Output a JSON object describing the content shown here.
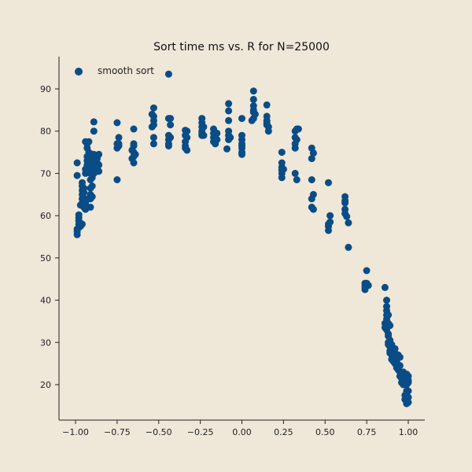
{
  "chart_data": {
    "type": "scatter",
    "title": "Sort time ms vs. R for N=25000",
    "xlabel": "",
    "ylabel": "",
    "xlim": [
      -1.1,
      1.1
    ],
    "ylim": [
      11.5,
      97
    ],
    "xticks": [
      -1.0,
      -0.75,
      -0.5,
      -0.25,
      0.0,
      0.25,
      0.5,
      0.75,
      1.0
    ],
    "xtick_labels": [
      "−1.00",
      "−0.75",
      "−0.50",
      "−0.25",
      "0.00",
      "0.25",
      "0.50",
      "0.75",
      "1.00"
    ],
    "yticks": [
      20,
      30,
      40,
      50,
      60,
      70,
      80,
      90
    ],
    "ytick_labels": [
      "20",
      "30",
      "40",
      "50",
      "60",
      "70",
      "80",
      "90"
    ],
    "grid": false,
    "legend_position": "top-left",
    "colors": {
      "background": "#efe7d8",
      "marker": "#0a4c86",
      "axis": "#222222"
    },
    "series": [
      {
        "name": "smooth sort",
        "points": [
          [
            -0.99,
            55.5
          ],
          [
            -0.99,
            56.2
          ],
          [
            -0.99,
            56.8
          ],
          [
            -0.98,
            57.2
          ],
          [
            -0.98,
            58.0
          ],
          [
            -0.98,
            58.8
          ],
          [
            -0.98,
            59.5
          ],
          [
            -0.98,
            60.2
          ],
          [
            -0.97,
            57.5
          ],
          [
            -0.96,
            58.0
          ],
          [
            -0.99,
            69.5
          ],
          [
            -0.99,
            72.5
          ],
          [
            -0.97,
            62.5
          ],
          [
            -0.96,
            63.0
          ],
          [
            -0.96,
            64.0
          ],
          [
            -0.96,
            65.0
          ],
          [
            -0.96,
            66.0
          ],
          [
            -0.96,
            67.0
          ],
          [
            -0.96,
            67.8
          ],
          [
            -0.95,
            62.0
          ],
          [
            -0.95,
            63.5
          ],
          [
            -0.95,
            65.5
          ],
          [
            -0.95,
            66.5
          ],
          [
            -0.94,
            64.0
          ],
          [
            -0.94,
            70.0
          ],
          [
            -0.94,
            71.0
          ],
          [
            -0.94,
            61.5
          ],
          [
            -0.94,
            63.0
          ],
          [
            -0.93,
            72.0
          ],
          [
            -0.93,
            73.0
          ],
          [
            -0.93,
            74.0
          ],
          [
            -0.93,
            76.0
          ],
          [
            -0.93,
            77.0
          ],
          [
            -0.92,
            77.5
          ],
          [
            -0.92,
            75.0
          ],
          [
            -0.92,
            73.5
          ],
          [
            -0.92,
            72.5
          ],
          [
            -0.92,
            70.5
          ],
          [
            -0.91,
            62.0
          ],
          [
            -0.91,
            64.0
          ],
          [
            -0.91,
            65.0
          ],
          [
            -0.91,
            66.5
          ],
          [
            -0.91,
            68.5
          ],
          [
            -0.91,
            70.0
          ],
          [
            -0.91,
            71.0
          ],
          [
            -0.91,
            72.0
          ],
          [
            -0.9,
            64.5
          ],
          [
            -0.9,
            67.0
          ],
          [
            -0.9,
            69.0
          ],
          [
            -0.9,
            71.5
          ],
          [
            -0.9,
            73.0
          ],
          [
            -0.9,
            74.5
          ],
          [
            -0.89,
            70.0
          ],
          [
            -0.89,
            72.5
          ],
          [
            -0.89,
            74.5
          ],
          [
            -0.89,
            80.0
          ],
          [
            -0.89,
            82.2
          ],
          [
            -0.88,
            71.0
          ],
          [
            -0.88,
            73.0
          ],
          [
            -0.87,
            70.5
          ],
          [
            -0.87,
            72.5
          ],
          [
            -0.87,
            73.5
          ],
          [
            -0.86,
            74.5
          ],
          [
            -0.86,
            72.0
          ],
          [
            -0.86,
            70.5
          ],
          [
            -0.94,
            77.5
          ],
          [
            -0.75,
            82.0
          ],
          [
            -0.75,
            68.5
          ],
          [
            -0.75,
            76.0
          ],
          [
            -0.75,
            77.0
          ],
          [
            -0.74,
            77.0
          ],
          [
            -0.74,
            76.5
          ],
          [
            -0.74,
            78.5
          ],
          [
            -0.65,
            80.5
          ],
          [
            -0.65,
            72.5
          ],
          [
            -0.65,
            74.0
          ],
          [
            -0.65,
            75.0
          ],
          [
            -0.65,
            76.5
          ],
          [
            -0.65,
            77.0
          ],
          [
            -0.66,
            73.5
          ],
          [
            -0.66,
            75.5
          ],
          [
            -0.64,
            74.5
          ],
          [
            -0.54,
            84.0
          ],
          [
            -0.53,
            85.5
          ],
          [
            -0.53,
            83.5
          ],
          [
            -0.53,
            82.5
          ],
          [
            -0.53,
            81.5
          ],
          [
            -0.53,
            78.5
          ],
          [
            -0.53,
            77.0
          ],
          [
            -0.54,
            81.0
          ],
          [
            -0.44,
            93.5
          ],
          [
            -0.44,
            83.0
          ],
          [
            -0.44,
            79.0
          ],
          [
            -0.44,
            78.0
          ],
          [
            -0.44,
            77.0
          ],
          [
            -0.44,
            76.5
          ],
          [
            -0.43,
            83.0
          ],
          [
            -0.43,
            81.5
          ],
          [
            -0.43,
            78.5
          ],
          [
            -0.34,
            80.2
          ],
          [
            -0.34,
            79.0
          ],
          [
            -0.34,
            77.5
          ],
          [
            -0.34,
            76.5
          ],
          [
            -0.34,
            76.0
          ],
          [
            -0.33,
            80.0
          ],
          [
            -0.33,
            78.5
          ],
          [
            -0.33,
            75.5
          ],
          [
            -0.24,
            83.0
          ],
          [
            -0.24,
            82.0
          ],
          [
            -0.24,
            81.0
          ],
          [
            -0.24,
            80.0
          ],
          [
            -0.24,
            79.5
          ],
          [
            -0.24,
            79.0
          ],
          [
            -0.23,
            81.0
          ],
          [
            -0.23,
            79.0
          ],
          [
            -0.17,
            80.5
          ],
          [
            -0.17,
            79.5
          ],
          [
            -0.17,
            78.5
          ],
          [
            -0.17,
            77.5
          ],
          [
            -0.16,
            77.0
          ],
          [
            -0.16,
            79.0
          ],
          [
            -0.15,
            79.5
          ],
          [
            -0.15,
            78.0
          ],
          [
            -0.08,
            86.5
          ],
          [
            -0.08,
            84.8
          ],
          [
            -0.08,
            82.5
          ],
          [
            -0.08,
            80.0
          ],
          [
            -0.08,
            79.0
          ],
          [
            -0.08,
            78.0
          ],
          [
            -0.09,
            75.8
          ],
          [
            -0.07,
            78.5
          ],
          [
            0.0,
            83.0
          ],
          [
            0.0,
            79.0
          ],
          [
            0.0,
            78.0
          ],
          [
            0.0,
            77.0
          ],
          [
            0.0,
            76.5
          ],
          [
            0.0,
            76.0
          ],
          [
            0.0,
            75.0
          ],
          [
            0.0,
            74.5
          ],
          [
            0.07,
            89.5
          ],
          [
            0.07,
            87.5
          ],
          [
            0.07,
            86.0
          ],
          [
            0.07,
            85.0
          ],
          [
            0.07,
            84.5
          ],
          [
            0.07,
            83.0
          ],
          [
            0.06,
            82.5
          ],
          [
            0.08,
            84.0
          ],
          [
            0.15,
            86.2
          ],
          [
            0.15,
            83.5
          ],
          [
            0.15,
            82.5
          ],
          [
            0.15,
            82.0
          ],
          [
            0.15,
            81.5
          ],
          [
            0.16,
            80.0
          ],
          [
            0.16,
            81.0
          ],
          [
            0.24,
            75.0
          ],
          [
            0.24,
            72.5
          ],
          [
            0.24,
            71.5
          ],
          [
            0.24,
            70.8
          ],
          [
            0.24,
            70.0
          ],
          [
            0.24,
            69.0
          ],
          [
            0.25,
            71.0
          ],
          [
            0.32,
            80.0
          ],
          [
            0.32,
            78.5
          ],
          [
            0.32,
            77.0
          ],
          [
            0.32,
            76.0
          ],
          [
            0.33,
            80.5
          ],
          [
            0.33,
            78.0
          ],
          [
            0.32,
            70.0
          ],
          [
            0.33,
            68.5
          ],
          [
            0.34,
            80.5
          ],
          [
            0.42,
            76.0
          ],
          [
            0.42,
            73.5
          ],
          [
            0.42,
            68.5
          ],
          [
            0.42,
            64.0
          ],
          [
            0.42,
            62.0
          ],
          [
            0.43,
            74.8
          ],
          [
            0.43,
            65.0
          ],
          [
            0.43,
            61.5
          ],
          [
            0.52,
            67.8
          ],
          [
            0.52,
            58.0
          ],
          [
            0.52,
            57.5
          ],
          [
            0.52,
            56.5
          ],
          [
            0.53,
            60.0
          ],
          [
            0.53,
            58.5
          ],
          [
            0.62,
            64.5
          ],
          [
            0.62,
            63.5
          ],
          [
            0.62,
            63.0
          ],
          [
            0.62,
            61.5
          ],
          [
            0.62,
            60.5
          ],
          [
            0.63,
            59.8
          ],
          [
            0.64,
            58.3
          ],
          [
            0.64,
            52.5
          ],
          [
            0.75,
            47.0
          ],
          [
            0.74,
            44.0
          ],
          [
            0.74,
            43.5
          ],
          [
            0.74,
            43.0
          ],
          [
            0.74,
            42.5
          ],
          [
            0.75,
            44.0
          ],
          [
            0.76,
            43.5
          ],
          [
            0.86,
            43.0
          ],
          [
            0.86,
            34.5
          ],
          [
            0.86,
            33.5
          ],
          [
            0.87,
            40.0
          ],
          [
            0.87,
            38.5
          ],
          [
            0.87,
            37.5
          ],
          [
            0.87,
            36.5
          ],
          [
            0.87,
            35.5
          ],
          [
            0.87,
            35.0
          ],
          [
            0.87,
            33.0
          ],
          [
            0.88,
            36.5
          ],
          [
            0.88,
            34.5
          ],
          [
            0.88,
            32.0
          ],
          [
            0.88,
            31.5
          ],
          [
            0.88,
            30.0
          ],
          [
            0.88,
            29.5
          ],
          [
            0.89,
            30.5
          ],
          [
            0.89,
            29.0
          ],
          [
            0.89,
            28.0
          ],
          [
            0.89,
            27.5
          ],
          [
            0.89,
            34.0
          ],
          [
            0.9,
            29.5
          ],
          [
            0.9,
            27.5
          ],
          [
            0.9,
            27.0
          ],
          [
            0.9,
            26.0
          ],
          [
            0.91,
            28.0
          ],
          [
            0.91,
            27.0
          ],
          [
            0.91,
            26.0
          ],
          [
            0.91,
            25.5
          ],
          [
            0.92,
            28.5
          ],
          [
            0.92,
            27.5
          ],
          [
            0.92,
            26.5
          ],
          [
            0.92,
            25.0
          ],
          [
            0.93,
            26.5
          ],
          [
            0.93,
            25.5
          ],
          [
            0.93,
            24.0
          ],
          [
            0.94,
            27.0
          ],
          [
            0.94,
            23.5
          ],
          [
            0.95,
            26.5
          ],
          [
            0.95,
            24.5
          ],
          [
            0.95,
            23.0
          ],
          [
            0.95,
            22.0
          ],
          [
            0.96,
            22.5
          ],
          [
            0.96,
            21.5
          ],
          [
            0.96,
            20.5
          ],
          [
            0.97,
            23.0
          ],
          [
            0.97,
            21.0
          ],
          [
            0.97,
            20.0
          ],
          [
            0.98,
            22.0
          ],
          [
            0.98,
            20.5
          ],
          [
            0.98,
            17.5
          ],
          [
            0.98,
            16.5
          ],
          [
            0.99,
            22.5
          ],
          [
            0.99,
            21.5
          ],
          [
            0.99,
            20.0
          ],
          [
            0.99,
            18.5
          ],
          [
            0.99,
            16.0
          ],
          [
            0.99,
            15.5
          ],
          [
            1.0,
            22.0
          ],
          [
            1.0,
            21.0
          ],
          [
            1.0,
            20.5
          ],
          [
            1.0,
            18.5
          ],
          [
            1.0,
            17.0
          ],
          [
            1.0,
            15.8
          ]
        ]
      }
    ]
  }
}
